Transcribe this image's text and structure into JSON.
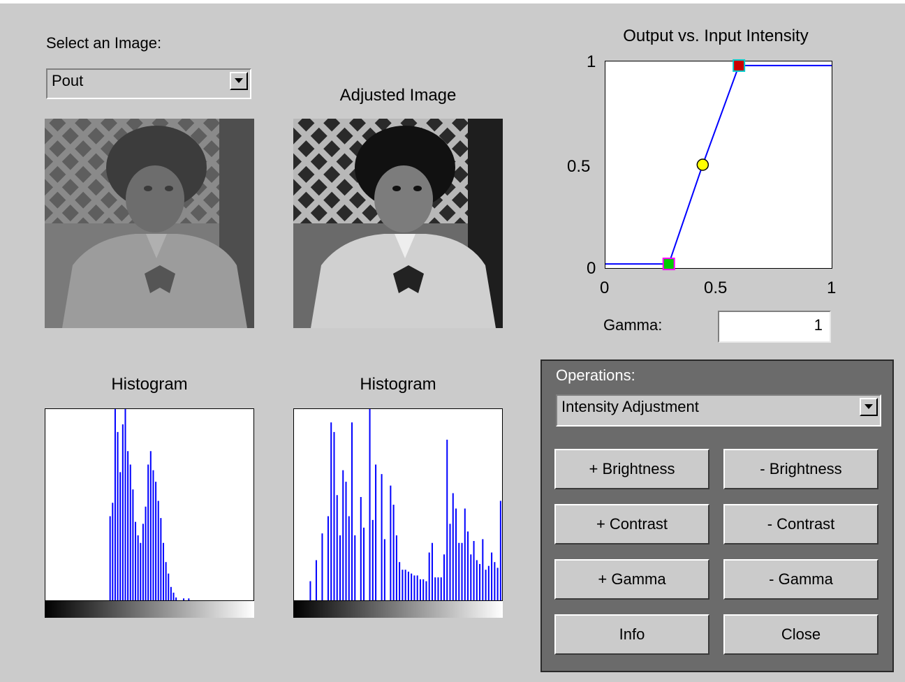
{
  "image_selector": {
    "label": "Select an Image:",
    "selected": "Pout"
  },
  "adjusted_image_title": "Adjusted Image",
  "histograms": {
    "original_title": "Histogram",
    "adjusted_title": "Histogram",
    "original_bins": [
      0,
      0,
      0,
      0,
      0,
      0,
      0,
      0,
      0,
      0,
      0,
      0,
      0,
      0,
      0,
      0,
      0,
      0,
      0,
      0,
      0,
      0,
      0,
      0,
      0,
      0.44,
      0.51,
      1.0,
      0.88,
      0.67,
      0.92,
      1.0,
      0.78,
      0.71,
      0.58,
      0.41,
      0.34,
      0.3,
      0.4,
      0.49,
      0.71,
      0.78,
      0.68,
      0.62,
      0.52,
      0.43,
      0.3,
      0.2,
      0.14,
      0.07,
      0.04,
      0.015,
      0,
      0,
      0.01,
      0,
      0.01,
      0,
      0,
      0,
      0,
      0,
      0,
      0,
      0,
      0,
      0,
      0,
      0,
      0,
      0,
      0,
      0,
      0,
      0,
      0,
      0,
      0,
      0,
      0,
      0,
      0
    ],
    "adjusted_bins": [
      0,
      0,
      0,
      0,
      0,
      0.1,
      0,
      0.21,
      0,
      0.35,
      0,
      0.44,
      0.93,
      0.88,
      0.55,
      0.34,
      0.68,
      0.62,
      0.44,
      0.93,
      0.34,
      0,
      0.54,
      0.38,
      0,
      1.0,
      0.42,
      0.71,
      0,
      0.66,
      0.32,
      0,
      0.6,
      0.5,
      0.34,
      0.2,
      0.16,
      0.16,
      0.15,
      0.14,
      0.13,
      0.13,
      0.11,
      0.11,
      0.1,
      0.25,
      0.3,
      0.12,
      0.12,
      0.12,
      0.24,
      0.84,
      0.4,
      0.56,
      0.48,
      0.3,
      0.3,
      0.48,
      0.36,
      0.24,
      0.31,
      0.21,
      0.19,
      0.32,
      0.16,
      0.18,
      0.25,
      0.2,
      0.17,
      0.52
    ]
  },
  "plot": {
    "title": "Output vs. Input Intensity",
    "x_ticks": [
      "0",
      "0.5",
      "1"
    ],
    "y_ticks": [
      "1",
      "0.5",
      "0"
    ],
    "curve": [
      [
        0,
        0.02
      ],
      [
        0.28,
        0.02
      ],
      [
        0.43,
        0.5
      ],
      [
        0.59,
        0.98
      ],
      [
        1.0,
        0.98
      ]
    ],
    "control_points": {
      "low": {
        "x": 0.28,
        "y": 0.02,
        "fill": "#00cc00",
        "edge": "#ff00ff"
      },
      "mid": {
        "x": 0.43,
        "y": 0.5,
        "fill": "#ffff00",
        "edge": "#000000"
      },
      "high": {
        "x": 0.59,
        "y": 0.98,
        "fill": "#cc0000",
        "edge": "#00cccc"
      }
    },
    "line_color": "#0000ff"
  },
  "gamma": {
    "label": "Gamma:",
    "value": "1"
  },
  "operations": {
    "label": "Operations:",
    "selected": "Intensity Adjustment",
    "buttons": {
      "brightness_up": "+ Brightness",
      "brightness_down": "- Brightness",
      "contrast_up": "+ Contrast",
      "contrast_down": "- Contrast",
      "gamma_up": "+ Gamma",
      "gamma_down": "- Gamma",
      "info": "Info",
      "close": "Close"
    }
  }
}
